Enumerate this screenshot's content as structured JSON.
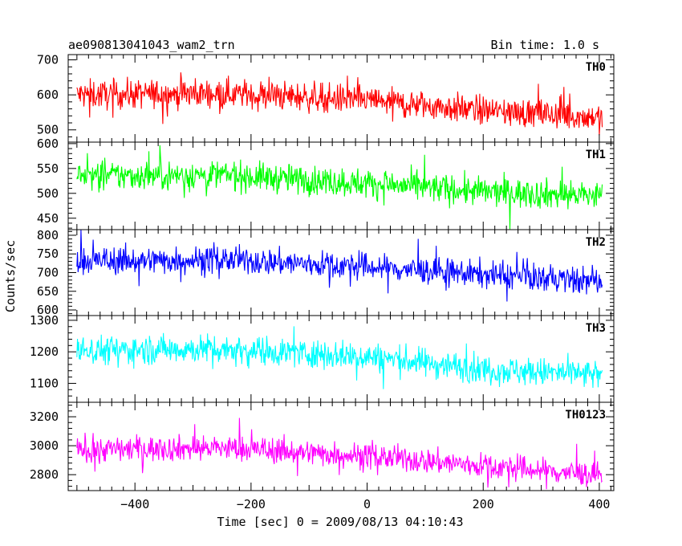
{
  "header": {
    "title": "ae090813041043_wam2_trn",
    "bin_time": "Bin time: 1.0 s"
  },
  "axes": {
    "xlabel": "Time [sec] 0 = 2009/08/13 04:10:43",
    "ylabel": "Counts/sec"
  },
  "chart_data": {
    "type": "line",
    "title": "ae090813041043_wam2_trn",
    "xlabel": "Time [sec] 0 = 2009/08/13 04:10:43",
    "ylabel": "Counts/sec",
    "xlim": [
      -515,
      425
    ],
    "xticks": [
      -400,
      -200,
      0,
      200,
      400
    ],
    "x_start": -500,
    "x_end": 405,
    "bin_time": 1.0,
    "panels": [
      {
        "name": "TH0",
        "color": "#ff0000",
        "ylim": [
          465,
          715
        ],
        "yticks": [
          500,
          600,
          700
        ],
        "trend": [
          [
            -500,
            600
          ],
          [
            -250,
            605
          ],
          [
            0,
            585
          ],
          [
            200,
            555
          ],
          [
            405,
            535
          ]
        ],
        "noise": 38,
        "y_min": 478,
        "y_max": 712
      },
      {
        "name": "TH1",
        "color": "#00ff00",
        "ylim": [
          427,
          603
        ],
        "yticks": [
          450,
          500,
          550,
          600
        ],
        "trend": [
          [
            -500,
            535
          ],
          [
            -250,
            537
          ],
          [
            0,
            520
          ],
          [
            200,
            503
          ],
          [
            405,
            495
          ]
        ],
        "noise": 27,
        "y_min": 428,
        "y_max": 603
      },
      {
        "name": "TH2",
        "color": "#0000ff",
        "ylim": [
          585,
          815
        ],
        "yticks": [
          600,
          650,
          700,
          750,
          800
        ],
        "trend": [
          [
            -500,
            730
          ],
          [
            -250,
            735
          ],
          [
            0,
            715
          ],
          [
            200,
            695
          ],
          [
            405,
            675
          ]
        ],
        "noise": 33,
        "y_min": 586,
        "y_max": 815
      },
      {
        "name": "TH3",
        "color": "#00ffff",
        "ylim": [
          1040,
          1315
        ],
        "yticks": [
          1100,
          1200,
          1300
        ],
        "trend": [
          [
            -500,
            1205
          ],
          [
            -250,
            1210
          ],
          [
            0,
            1185
          ],
          [
            200,
            1145
          ],
          [
            405,
            1125
          ]
        ],
        "noise": 42,
        "y_min": 1045,
        "y_max": 1315
      },
      {
        "name": "TH0123",
        "color": "#ff00ff",
        "ylim": [
          2690,
          3300
        ],
        "yticks": [
          2800,
          3000,
          3200
        ],
        "trend": [
          [
            -500,
            2975
          ],
          [
            -250,
            2985
          ],
          [
            0,
            2930
          ],
          [
            200,
            2860
          ],
          [
            405,
            2795
          ]
        ],
        "noise": 80,
        "y_min": 2700,
        "y_max": 3290
      }
    ]
  }
}
